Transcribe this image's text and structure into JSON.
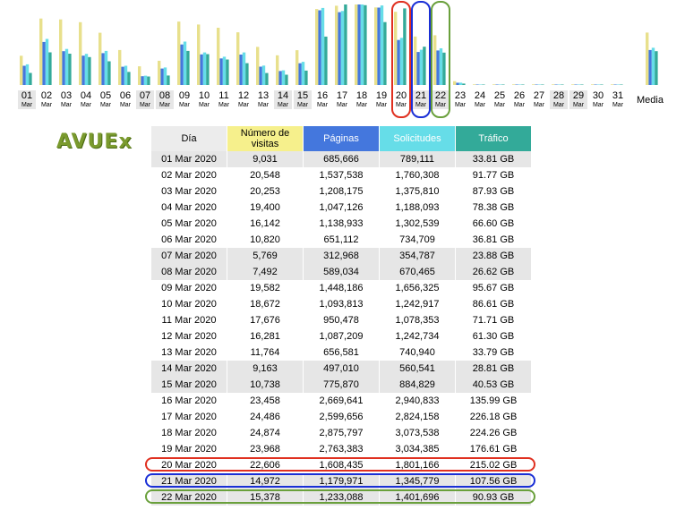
{
  "chart_data": {
    "type": "bar",
    "categories": [
      "01",
      "02",
      "03",
      "04",
      "05",
      "06",
      "07",
      "08",
      "09",
      "10",
      "11",
      "12",
      "13",
      "14",
      "15",
      "16",
      "17",
      "18",
      "19",
      "20",
      "21",
      "22",
      "23",
      "24",
      "25",
      "26",
      "27",
      "28",
      "29",
      "30",
      "31"
    ],
    "month_label": "Mar",
    "weekend_days": [
      "01",
      "07",
      "08",
      "14",
      "15",
      "21",
      "22",
      "28",
      "29"
    ],
    "average_label": "Media",
    "series": [
      {
        "name": "Número de visitas",
        "color": "#e8e08c",
        "values": [
          9031,
          20548,
          20253,
          19400,
          16142,
          10820,
          5769,
          7492,
          19582,
          18672,
          17676,
          16281,
          11764,
          9163,
          10738,
          23458,
          24486,
          24874,
          23968,
          22606,
          14972,
          15378,
          1200,
          200,
          200,
          200,
          200,
          200,
          200,
          200,
          200
        ],
        "average": 16200
      },
      {
        "name": "Páginas",
        "color": "#4477dd",
        "values": [
          685666,
          1537538,
          1208175,
          1047126,
          1138933,
          651112,
          312968,
          589034,
          1448186,
          1093813,
          950478,
          1087209,
          656581,
          497010,
          775870,
          2669641,
          2599656,
          2875797,
          2763383,
          1608435,
          1179971,
          1233088,
          80000,
          10000,
          10000,
          10000,
          10000,
          10000,
          10000,
          10000,
          10000
        ],
        "average": 1250000
      },
      {
        "name": "Solicitudes",
        "color": "#66dde8",
        "values": [
          789111,
          1760308,
          1375810,
          1188093,
          1302539,
          734709,
          354787,
          670465,
          1656325,
          1242917,
          1078353,
          1242734,
          740940,
          560541,
          884829,
          2940833,
          2824158,
          3073538,
          3034385,
          1801166,
          1345779,
          1401696,
          90000,
          12000,
          12000,
          12000,
          12000,
          12000,
          12000,
          12000,
          12000
        ],
        "average": 1420000
      },
      {
        "name": "Tráfico",
        "color": "#33aa99",
        "values": [
          33.81,
          91.77,
          87.93,
          78.38,
          66.6,
          36.81,
          23.88,
          26.62,
          95.67,
          86.61,
          71.71,
          61.3,
          33.79,
          28.81,
          40.53,
          135.99,
          226.18,
          224.26,
          176.61,
          215.02,
          107.56,
          90.93,
          4,
          0.5,
          0.5,
          0.5,
          0.5,
          0.5,
          0.5,
          0.5,
          0.5
        ],
        "average": 95
      }
    ],
    "highlights": [
      {
        "day": "20",
        "color": "#e03020"
      },
      {
        "day": "21",
        "color": "#1a2fd6"
      },
      {
        "day": "22",
        "color": "#6aa03c"
      }
    ]
  },
  "logo_text": "AVUEx",
  "table": {
    "headers": {
      "day": "Día",
      "visits": "Número de visitas",
      "pages": "Páginas",
      "requests": "Solicitudes",
      "traffic": "Tráfico"
    },
    "rows": [
      {
        "day": "01 Mar 2020",
        "visits": "9,031",
        "pages": "685,666",
        "requests": "789,111",
        "traffic": "33.81 GB",
        "weekend": true
      },
      {
        "day": "02 Mar 2020",
        "visits": "20,548",
        "pages": "1,537,538",
        "requests": "1,760,308",
        "traffic": "91.77 GB",
        "weekend": false
      },
      {
        "day": "03 Mar 2020",
        "visits": "20,253",
        "pages": "1,208,175",
        "requests": "1,375,810",
        "traffic": "87.93 GB",
        "weekend": false
      },
      {
        "day": "04 Mar 2020",
        "visits": "19,400",
        "pages": "1,047,126",
        "requests": "1,188,093",
        "traffic": "78.38 GB",
        "weekend": false
      },
      {
        "day": "05 Mar 2020",
        "visits": "16,142",
        "pages": "1,138,933",
        "requests": "1,302,539",
        "traffic": "66.60 GB",
        "weekend": false
      },
      {
        "day": "06 Mar 2020",
        "visits": "10,820",
        "pages": "651,112",
        "requests": "734,709",
        "traffic": "36.81 GB",
        "weekend": false
      },
      {
        "day": "07 Mar 2020",
        "visits": "5,769",
        "pages": "312,968",
        "requests": "354,787",
        "traffic": "23.88 GB",
        "weekend": true
      },
      {
        "day": "08 Mar 2020",
        "visits": "7,492",
        "pages": "589,034",
        "requests": "670,465",
        "traffic": "26.62 GB",
        "weekend": true
      },
      {
        "day": "09 Mar 2020",
        "visits": "19,582",
        "pages": "1,448,186",
        "requests": "1,656,325",
        "traffic": "95.67 GB",
        "weekend": false
      },
      {
        "day": "10 Mar 2020",
        "visits": "18,672",
        "pages": "1,093,813",
        "requests": "1,242,917",
        "traffic": "86.61 GB",
        "weekend": false
      },
      {
        "day": "11 Mar 2020",
        "visits": "17,676",
        "pages": "950,478",
        "requests": "1,078,353",
        "traffic": "71.71 GB",
        "weekend": false
      },
      {
        "day": "12 Mar 2020",
        "visits": "16,281",
        "pages": "1,087,209",
        "requests": "1,242,734",
        "traffic": "61.30 GB",
        "weekend": false
      },
      {
        "day": "13 Mar 2020",
        "visits": "11,764",
        "pages": "656,581",
        "requests": "740,940",
        "traffic": "33.79 GB",
        "weekend": false
      },
      {
        "day": "14 Mar 2020",
        "visits": "9,163",
        "pages": "497,010",
        "requests": "560,541",
        "traffic": "28.81 GB",
        "weekend": true
      },
      {
        "day": "15 Mar 2020",
        "visits": "10,738",
        "pages": "775,870",
        "requests": "884,829",
        "traffic": "40.53 GB",
        "weekend": true
      },
      {
        "day": "16 Mar 2020",
        "visits": "23,458",
        "pages": "2,669,641",
        "requests": "2,940,833",
        "traffic": "135.99 GB",
        "weekend": false
      },
      {
        "day": "17 Mar 2020",
        "visits": "24,486",
        "pages": "2,599,656",
        "requests": "2,824,158",
        "traffic": "226.18 GB",
        "weekend": false
      },
      {
        "day": "18 Mar 2020",
        "visits": "24,874",
        "pages": "2,875,797",
        "requests": "3,073,538",
        "traffic": "224.26 GB",
        "weekend": false
      },
      {
        "day": "19 Mar 2020",
        "visits": "23,968",
        "pages": "2,763,383",
        "requests": "3,034,385",
        "traffic": "176.61 GB",
        "weekend": false
      },
      {
        "day": "20 Mar 2020",
        "visits": "22,606",
        "pages": "1,608,435",
        "requests": "1,801,166",
        "traffic": "215.02 GB",
        "weekend": false,
        "highlight": "#e03020"
      },
      {
        "day": "21 Mar 2020",
        "visits": "14,972",
        "pages": "1,179,971",
        "requests": "1,345,779",
        "traffic": "107.56 GB",
        "weekend": true,
        "highlight": "#1a2fd6"
      },
      {
        "day": "22 Mar 2020",
        "visits": "15,378",
        "pages": "1,233,088",
        "requests": "1,401,696",
        "traffic": "90.93 GB",
        "weekend": true,
        "highlight": "#6aa03c"
      }
    ]
  }
}
